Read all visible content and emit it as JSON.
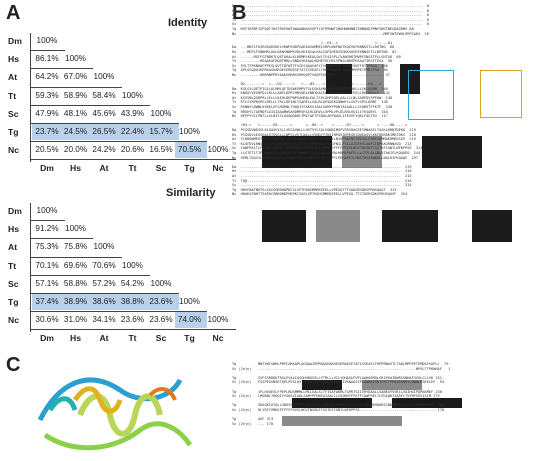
{
  "panels": {
    "a": "A",
    "b": "B",
    "c": "C"
  },
  "species": [
    "Dm",
    "Hs",
    "At",
    "Tt",
    "Sc",
    "Tg",
    "Nc"
  ],
  "identity": {
    "title": "Identity",
    "rows": [
      [
        "100%"
      ],
      [
        "86.1%",
        "100%"
      ],
      [
        "64.2%",
        "67.0%",
        "100%"
      ],
      [
        "59.3%",
        "58.9%",
        "58.4%",
        "100%"
      ],
      [
        "47.9%",
        "48.1%",
        "45.6%",
        "43.9%",
        "100%"
      ],
      [
        "23.7%",
        "24.5%",
        "26.5%",
        "22.4%",
        "15.7%",
        "100%"
      ],
      [
        "20.5%",
        "20.0%",
        "24.2%",
        "20.6%",
        "16.5%",
        "70.5%",
        "100%"
      ]
    ]
  },
  "similarity": {
    "title": "Similarity",
    "rows": [
      [
        "100%"
      ],
      [
        "91.2%",
        "100%"
      ],
      [
        "75.3%",
        "75.8%",
        "100%"
      ],
      [
        "70.1%",
        "69.6%",
        "70.6%",
        "100%"
      ],
      [
        "57.1%",
        "58.8%",
        "57.2%",
        "54.2%",
        "100%"
      ],
      [
        "37.4%",
        "38.9%",
        "38.6%",
        "38.8%",
        "23.6%",
        "100%"
      ],
      [
        "30.6%",
        "31.0%",
        "34.1%",
        "23.6%",
        "23.6%",
        "74.0%",
        "100%"
      ]
    ]
  },
  "colors": {
    "highlight": "#b9d0ea",
    "cyan_box": "#29a9d6",
    "orange_box": "#e0a21c",
    "helix_red": "#d23a2a",
    "mark_green": "#2a9a4a",
    "mark_orange": "#e07a1c"
  },
  "alignment_b": {
    "labels_top": [
      "Dm",
      "Hs",
      "At",
      "Tt",
      "Sc",
      "Tg",
      "Nc"
    ],
    "lines": [
      "Dm  ------------------------------------------------------------------------------------  0",
      "Hs  ------------------------------------------------------------------------------------  0",
      "At  ------------------------------------------------------------------------------------  0",
      "Tt  ------------------------------------------------------------------------------------  0",
      "Sc  ------------------------------------------------------------------------------------  0",
      "Tg  MSFIQPNFISPQQTIRSTRGFKWTAWAANNAGVGPTYATPRNWTINGHNNHNNTINNHADTMNFVNGTNESDAGRMS 80",
      "Nc  ------------------------------------------------------------------MMTVWTSWHLPRPCAKX  16",
      "",
      "                                         <--H1-->                 <-----B1",
      "Dm  ---MDFLFGSRSRAKVKELVKWFKHDPGAKEAVAMREIVRPLNKFNGTKQEVKFKNNGSTLLRHTNG  60",
      "Hs  ---MEPLFGNNHKLDALRKNVNWPKVDLKKEAIALRALIAPIHEHIGGKKSQVKFKNNGSTLLRHTNG  62",
      "At  ------MSFFGTNDKTLQETARALKLRDMRYKEALQVLTFAISPLCVANGRKTMVRFSNSSTPLLGHTAD  60",
      "Tt  ---------MSAAEAFHQDTMRLLRNDAYKEAALRQHEYVLHPLVPNSLNRVPRSAATIRSITEGA  56",
      "Sc  PVLTTPKNHAFPPEGLQVTTDFWTTFSSESQAQVAFYIVKNAQSIPLANNKESNTFRTTPRSQ  168",
      "Tg  APLGGQAAIRPRKASHARGESERDESETATISSEAFLTHPPRWAVTLTAQLMPRPETEMDGFSA  84",
      "Nc  ---------HDRRNPPRYAAKVHRNSGRRQQPTVAQPSSRIRPS---------------------  37",
      "",
      "    B2-------->  <---H2----->   <---B3---->            <-------H3--->",
      "Dm  KSLGYLDETPIGLLKLMMLQFTDSWEEMPVTVLEGKAVNHARQTEEAVEVFRKLLLSKLQENN  140",
      "Hs  KNGQYVEGRPDLLKLLLANFLDPRTHNVQRLENNYKAIELIHRIEDMAFIFFEELCRRLNRLLE  142",
      "At  KSSVNLDGRPRLLELLVAEHLDEPNPSAHRALEALTSVLGHPSQELAALLLLNLSARFDVSPPAW  140",
      "Tt  RTLSYRPRGPELMELLLTRLLDEVNLYSARELLSALRLQVVDEKGANWFLLSVFLGPSLDRNT  136",
      "Sc  RSNNYLDWNLKSKELEFLMGRNLTHQQIYSSKSVIAALSAMYPPQNTAIAALLLISQRHTFFKTF  248",
      "Tg  RRGHYLTAEMDFLAIGIAAQMWSARDMRVRSIRLDHVLLVPMLVPLDLKHLHGILIYESQRYL  164",
      "Nc  RPFPYGCLPNTLLSLNIYSLAVAQDDHLTMLTAETFSDQLAEPQASLIFEGVFYQKLFAGTEV  117",
      "",
      "    <H4->   <------H5------>      <--H6-->    <------H7----->      <-----H8----->",
      "Dm  PIGSDVWEGVLALGAAVVSLLVESAVWLLLHSTVYLSGLVQNAIMSPVSRIHAGSEIHNAAFLTASKLRRNTDEKQ  219",
      "Hs  PIGSDVLEGVQALGTSVGLLLWPSLVSTLWLLLVSNGYYINIIHPAVSRPEGRIQQEASVLKKFDKRAKIMRTDKS  216",
      "At  YLRDDWMEKTIFLSTVASNNILFVLLTAWFVIHHSTGFLKMHILNIHTRAFNGSVVSSLFDRFVQMMAKRMEDSSP  215",
      "Tt  KLGFDVLHNSLLLGTSIWMLMGFIQLGCSYLLQHNLMILMVEGFNILFSLLAIGFRVLAQFCIQPKAGRNNAVQ  213",
      "Sc  IAWFRELTLPDLWKIIARFLTVYMFSKYISIMRLYRIYVMKSFFFFFFRVSLNGVTNSRKFTSGTKFIQNTLNFKPPSE  314",
      "Tg  LLGTETLTIPLAWMLIILGAFLSTGFFAHWFFTLPQLASIALMQLHRMVPAFFLLLSTPLALSNLATAKIFLKQAQEQ  244",
      "Nc  GEMLTDAVILCVNGLFLQFSLSYNIYIIVILVQLSILFPLLLPYLPEHAPSTLMASTWYSRWKRLLNALKIFKQAQE  197",
      "",
      "Dm  --------------------------------------------------------------------------  219",
      "Hs  --------------------------------------------------------------------------  216",
      "At  --------------------------------------------------------------------------  215",
      "Tt  TQQ-----------------------------------------------------------------------  216",
      "Sc  --------------------------------------------------------------------------  314",
      "Tg  HRSCNATNHTSLEGCGGRDHDPKCSLSPTHSHCMMEKEEELLVPESQTTTSADGRSDKSPRHSQASF  313",
      "Nc  HRAEATNHTTSAPACGRRDRDPHRPKCSASLSPTHSHCMMEKEEELLVPESQ-TTCTDGRSDKSPRHSQASF  254"
    ]
  },
  "alignment_c": {
    "lines": [
      "Tg          MNTVWTSWHLPRPCARKAPLQGQAAIRPRKASHARGESERDESETATISSEAFLTHPPRWAVTLTAQLMPRPETEMDGFSAPLL  79",
      "Sc (2hjn)   -------------------------------------------------------------------------MPVLTTPKNHAF   1",
      "",
      "Tg          SVFSSRDDKTRSLEVALIASGHHRQSSLLFTRLLLVILYQHASLPVPLAAHQEMQLGRIHGAIDWRSGNHAFSVSLCLLVK 151",
      "Sc (2hjn)   FSSPEGSNSKTQPLPEGLQVTTDFWTTFSSESQAQVAFYIVKNAQSIPLANNKESNTFRTTPRSQRSNNYLDWNLKSKELEF  94",
      "",
      "Tg          IFLHVQEVLFPEPLRDSMMMLLMILGALSLTFISAFAKMLTGPKTSIIVRYDAALLSANEQYVSRLLVAIHGIPQMSKMEF 230",
      "Sc (2hjn)   LMGRNLTHQQIYSSKSVIAALSAMYPPQNTAIAALLLISQRHTFFKTFIAWFRELTLPDLWKIIARFLTVYMFSKYISIM 173",
      "",
      "Tg          SDAGKIQTQLLGDKVSQAFPVFSALVLDYLGALQLLSKPVVALHIKIFLKQAQEHQHRSCNATNHTSLEGCGGRDHDPKRSS 310",
      "Sc (2hjn)   RLYRIYVMKSFFFFFFRVSLNGVTNSRKFTSGTKFIQNTLNFKPPSE----------------------------------- 178",
      "",
      "Tg          ASF 313",
      "Sc (2hjn)   --- 178"
    ]
  }
}
